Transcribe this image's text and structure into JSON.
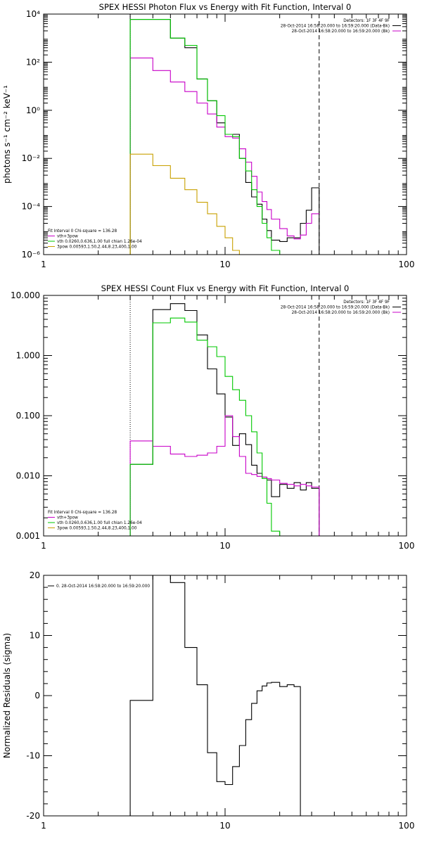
{
  "chart_data": [
    {
      "type": "line",
      "title": "SPEX HESSI Photon Flux vs Energy with Fit Function, Interval 0",
      "xlabel": "",
      "ylabel": "photons s⁻¹ cm⁻² keV⁻¹",
      "xscale": "log",
      "yscale": "log",
      "xlim": [
        1,
        100
      ],
      "ylim": [
        1e-06,
        10000
      ],
      "x_ticks": [
        "1",
        "10",
        "100"
      ],
      "y_ticks": [
        "10⁻⁶",
        "10⁻⁴",
        "10⁻²",
        "10⁰",
        "10²",
        "10⁴"
      ],
      "legend_top_right": [
        {
          "text": "Detectors: 1F 3F 4F 9F",
          "color": "#000000"
        },
        {
          "text": "28-Oct-2014 16:58:20.000 to 16:59:20.000 (Data-Bk)",
          "color": "#000000"
        },
        {
          "text": "28-Oct-2014 16:58:20.000 to 16:59:20.000 (Bk)",
          "color": "#c800c8"
        }
      ],
      "legend_bottom_left": [
        {
          "text": "Fit Interval 0   Chi-square = 136.28",
          "color": "#000000"
        },
        {
          "text": "vth+3pow",
          "color": "#c800c8"
        },
        {
          "text": "vth 0.0260,0.636,1.00  full chian 1.26e-04",
          "color": "#00c800"
        },
        {
          "text": "3pow 0.00593,1.50,2.44,8.23,400,1.00",
          "color": "#c8a000"
        }
      ],
      "vlines": [
        {
          "x": 3.0,
          "style": "dotted"
        },
        {
          "x": 33.0,
          "style": "dashed"
        }
      ],
      "energy_edges": [
        3,
        4,
        5,
        6,
        7,
        8,
        9,
        10,
        11,
        12,
        13,
        14,
        15,
        16,
        17,
        18,
        20,
        22,
        24,
        26,
        28,
        30,
        33
      ],
      "series": [
        {
          "name": "Data-Bk",
          "color": "#000000",
          "values": [
            6000,
            6000,
            1000,
            400,
            20,
            2.5,
            0.3,
            0.1,
            0.1,
            0.01,
            0.001,
            0.00025,
            0.000125,
            3e-05,
            1e-05,
            4e-06,
            3.5e-06,
            5e-06,
            5e-06,
            2e-05,
            7e-05,
            0.0006
          ]
        },
        {
          "name": "Bk",
          "color": "#c800c8",
          "values": [
            150,
            45,
            15,
            6,
            2,
            0.7,
            0.2,
            0.08,
            0.07,
            0.025,
            0.007,
            0.0018,
            0.0004,
            0.00016,
            7.5e-05,
            3e-05,
            1.2e-05,
            6e-06,
            4.5e-06,
            6.5e-06,
            2e-05,
            5e-05,
            0.0009
          ]
        },
        {
          "name": "vth+3pow",
          "color": "#00c800",
          "values": [
            6000,
            6000,
            1000,
            500,
            20,
            2.5,
            0.6,
            0.1,
            0.08,
            0.01,
            0.003,
            0.0005,
            0.0001,
            2e-05,
            5e-06,
            1.5e-06
          ]
        },
        {
          "name": "3pow",
          "color": "#c8a000",
          "values": [
            0.015,
            0.005,
            0.0015,
            0.0005,
            0.00015,
            5e-05,
            1.5e-05,
            5e-06,
            1.5e-06
          ]
        }
      ]
    },
    {
      "type": "line",
      "title": "SPEX HESSI Count Flux vs Energy with Fit Function, Interval 0",
      "xlabel": "",
      "ylabel": "",
      "xscale": "log",
      "yscale": "log",
      "xlim": [
        1,
        100
      ],
      "ylim": [
        0.001,
        10
      ],
      "x_ticks": [
        "1",
        "10",
        "100"
      ],
      "y_ticks": [
        "0.001",
        "0.010",
        "0.100",
        "1.000",
        "10.000"
      ],
      "legend_top_right": [
        {
          "text": "Detectors: 1F 3F 4F 9F",
          "color": "#000000"
        },
        {
          "text": "28-Oct-2014 16:58:20.000 to 16:59:20.000 (Data-Bk)",
          "color": "#000000"
        },
        {
          "text": "28-Oct-2014 16:58:20.000 to 16:59:20.000 (Bk)",
          "color": "#c800c8"
        }
      ],
      "legend_bottom_left": [
        {
          "text": "Fit Interval 0   Chi-square = 136.28",
          "color": "#000000"
        },
        {
          "text": "vth+3pow",
          "color": "#c800c8"
        },
        {
          "text": "vth 0.0260,0.636,1.00  full chian 1.26e-04",
          "color": "#00c800"
        },
        {
          "text": "3pow 0.00593,1.50,2.44,8.23,400,1.00",
          "color": "#c8a000"
        }
      ],
      "vlines": [
        {
          "x": 3.0,
          "style": "dotted"
        },
        {
          "x": 33.0,
          "style": "dashed"
        }
      ],
      "energy_edges": [
        3,
        4,
        5,
        6,
        7,
        8,
        9,
        10,
        11,
        12,
        13,
        14,
        15,
        16,
        17,
        18,
        20,
        22,
        24,
        26,
        28,
        30,
        33
      ],
      "series": [
        {
          "name": "Data-Bk",
          "color": "#000000",
          "values": [
            0.0155,
            5.8,
            7.3,
            5.6,
            2.2,
            0.6,
            0.23,
            0.095,
            0.032,
            0.05,
            0.033,
            0.015,
            0.011,
            0.0095,
            0.0085,
            0.0045,
            0.0072,
            0.0062,
            0.0077,
            0.0058,
            0.0077,
            0.0062
          ]
        },
        {
          "name": "Bk",
          "color": "#c800c8",
          "values": [
            0.038,
            0.031,
            0.023,
            0.021,
            0.022,
            0.024,
            0.031,
            0.1,
            0.045,
            0.021,
            0.011,
            0.0105,
            0.0098,
            0.0095,
            0.009,
            0.0085,
            0.0075,
            0.0072,
            0.0068,
            0.0072,
            0.0068,
            0.0065
          ]
        },
        {
          "name": "vth+3pow",
          "color": "#00c800",
          "values": [
            0.0155,
            3.5,
            4.2,
            3.6,
            1.8,
            1.4,
            0.96,
            0.45,
            0.27,
            0.18,
            0.1,
            0.054,
            0.024,
            0.009,
            0.0035,
            0.0012,
            0.0004
          ]
        },
        {
          "name": "3pow",
          "color": "#c8a000",
          "values": []
        }
      ]
    },
    {
      "type": "line",
      "title": "",
      "xlabel": "",
      "ylabel": "Normalized Residuals (sigma)",
      "xscale": "log",
      "yscale": "linear",
      "xlim": [
        1,
        100
      ],
      "ylim": [
        -20,
        20
      ],
      "x_ticks": [
        "1",
        "10",
        "100"
      ],
      "y_ticks": [
        "-20",
        "-10",
        "0",
        "10",
        "20"
      ],
      "legend_top_left": [
        {
          "text": "0. 28-Oct-2014 16:58:20.000 to 16:59:20.000",
          "color": "#000000"
        }
      ],
      "energy_edges": [
        3,
        4,
        5,
        6,
        7,
        8,
        9,
        10,
        11,
        12,
        13,
        14,
        15,
        16,
        17,
        18,
        20,
        22,
        24,
        26,
        28,
        30,
        33
      ],
      "series": [
        {
          "name": "0. 28-Oct-2014 16:58:20.000 to 16:59:20.000",
          "color": "#000000",
          "values": [
            -0.8,
            20.3,
            18.8,
            8.0,
            1.8,
            -9.5,
            -14.3,
            -14.8,
            -11.8,
            -8.3,
            -4.0,
            -1.3,
            0.8,
            1.6,
            2.1,
            2.2,
            1.5,
            1.8,
            1.5
          ]
        }
      ]
    }
  ]
}
